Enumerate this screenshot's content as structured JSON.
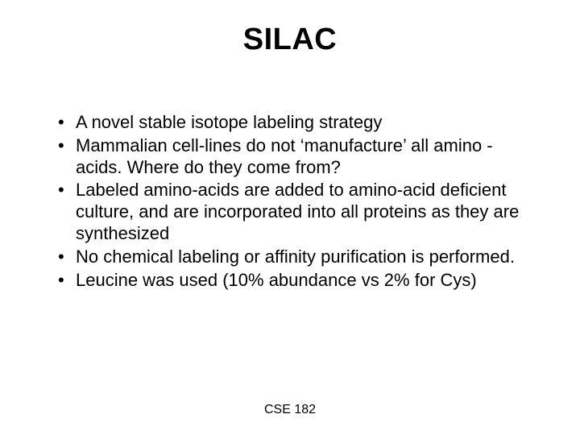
{
  "slide": {
    "title": "SILAC",
    "bullets": [
      "A novel stable isotope labeling strategy",
      "Mammalian cell-lines do not ‘manufacture’ all amino -acids. Where do they come from?",
      "Labeled amino-acids are added to amino-acid deficient culture, and are incorporated into all proteins as they are synthesized",
      "No chemical labeling or affinity purification is performed.",
      "Leucine was used (10% abundance vs 2% for Cys)"
    ],
    "footer": "CSE 182"
  },
  "style": {
    "background_color": "#ffffff",
    "text_color": "#000000",
    "font_family": "Comic Sans MS",
    "title_fontsize": 38,
    "body_fontsize": 22,
    "footer_fontsize": 16,
    "slide_width": 720,
    "slide_height": 540
  }
}
